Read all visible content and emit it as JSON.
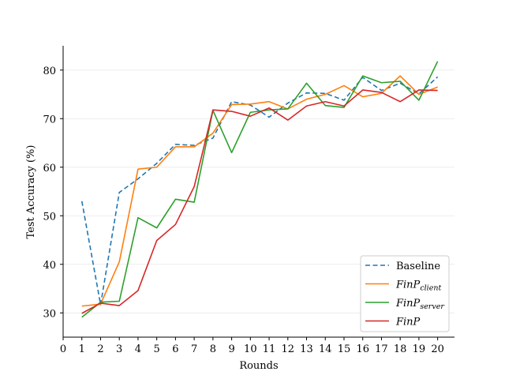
{
  "chart_data": {
    "type": "line",
    "xlabel": "Rounds",
    "ylabel": "Test Accuracy (%)",
    "xlim": [
      0,
      20.9
    ],
    "ylim": [
      25,
      85
    ],
    "xticks": [
      0,
      1,
      2,
      3,
      4,
      5,
      6,
      7,
      8,
      9,
      10,
      11,
      12,
      13,
      14,
      15,
      16,
      17,
      18,
      19,
      20
    ],
    "yticks": [
      30,
      40,
      50,
      60,
      70,
      80
    ],
    "grid": "horizontal",
    "legend_position": "lower-right",
    "x": [
      1,
      2,
      3,
      4,
      5,
      6,
      7,
      8,
      9,
      10,
      11,
      12,
      13,
      14,
      15,
      16,
      17,
      18,
      19,
      20
    ],
    "series": [
      {
        "name": "Baseline",
        "color": "#1f77b4",
        "dashed": true,
        "values": [
          53.0,
          31.7,
          54.8,
          57.6,
          60.8,
          64.7,
          64.5,
          66.0,
          73.5,
          72.8,
          70.3,
          73.2,
          75.3,
          75.2,
          73.8,
          78.5,
          75.8,
          77.3,
          75.1,
          78.6
        ]
      },
      {
        "name": "FinP",
        "subscript": "client",
        "color": "#ff7f0e",
        "dashed": false,
        "values": [
          31.4,
          31.8,
          40.5,
          59.6,
          60.0,
          64.2,
          64.2,
          67.0,
          72.9,
          73.0,
          73.5,
          72.0,
          74.0,
          75.0,
          76.8,
          74.5,
          75.2,
          78.8,
          75.0,
          76.5
        ]
      },
      {
        "name": "FinP",
        "subscript": "server",
        "color": "#2ca02c",
        "dashed": false,
        "values": [
          29.1,
          32.2,
          32.4,
          49.6,
          47.5,
          53.4,
          52.8,
          71.7,
          63.0,
          71.3,
          71.8,
          72.0,
          77.3,
          72.7,
          72.3,
          78.8,
          77.4,
          77.7,
          73.8,
          81.8
        ]
      },
      {
        "name": "FinP",
        "subscript": "",
        "color": "#d62728",
        "dashed": false,
        "values": [
          29.9,
          32.0,
          31.5,
          34.6,
          44.9,
          48.2,
          56.0,
          71.8,
          71.5,
          70.5,
          72.2,
          69.7,
          72.6,
          73.5,
          72.6,
          75.9,
          75.4,
          73.5,
          75.9,
          75.8
        ]
      }
    ]
  }
}
